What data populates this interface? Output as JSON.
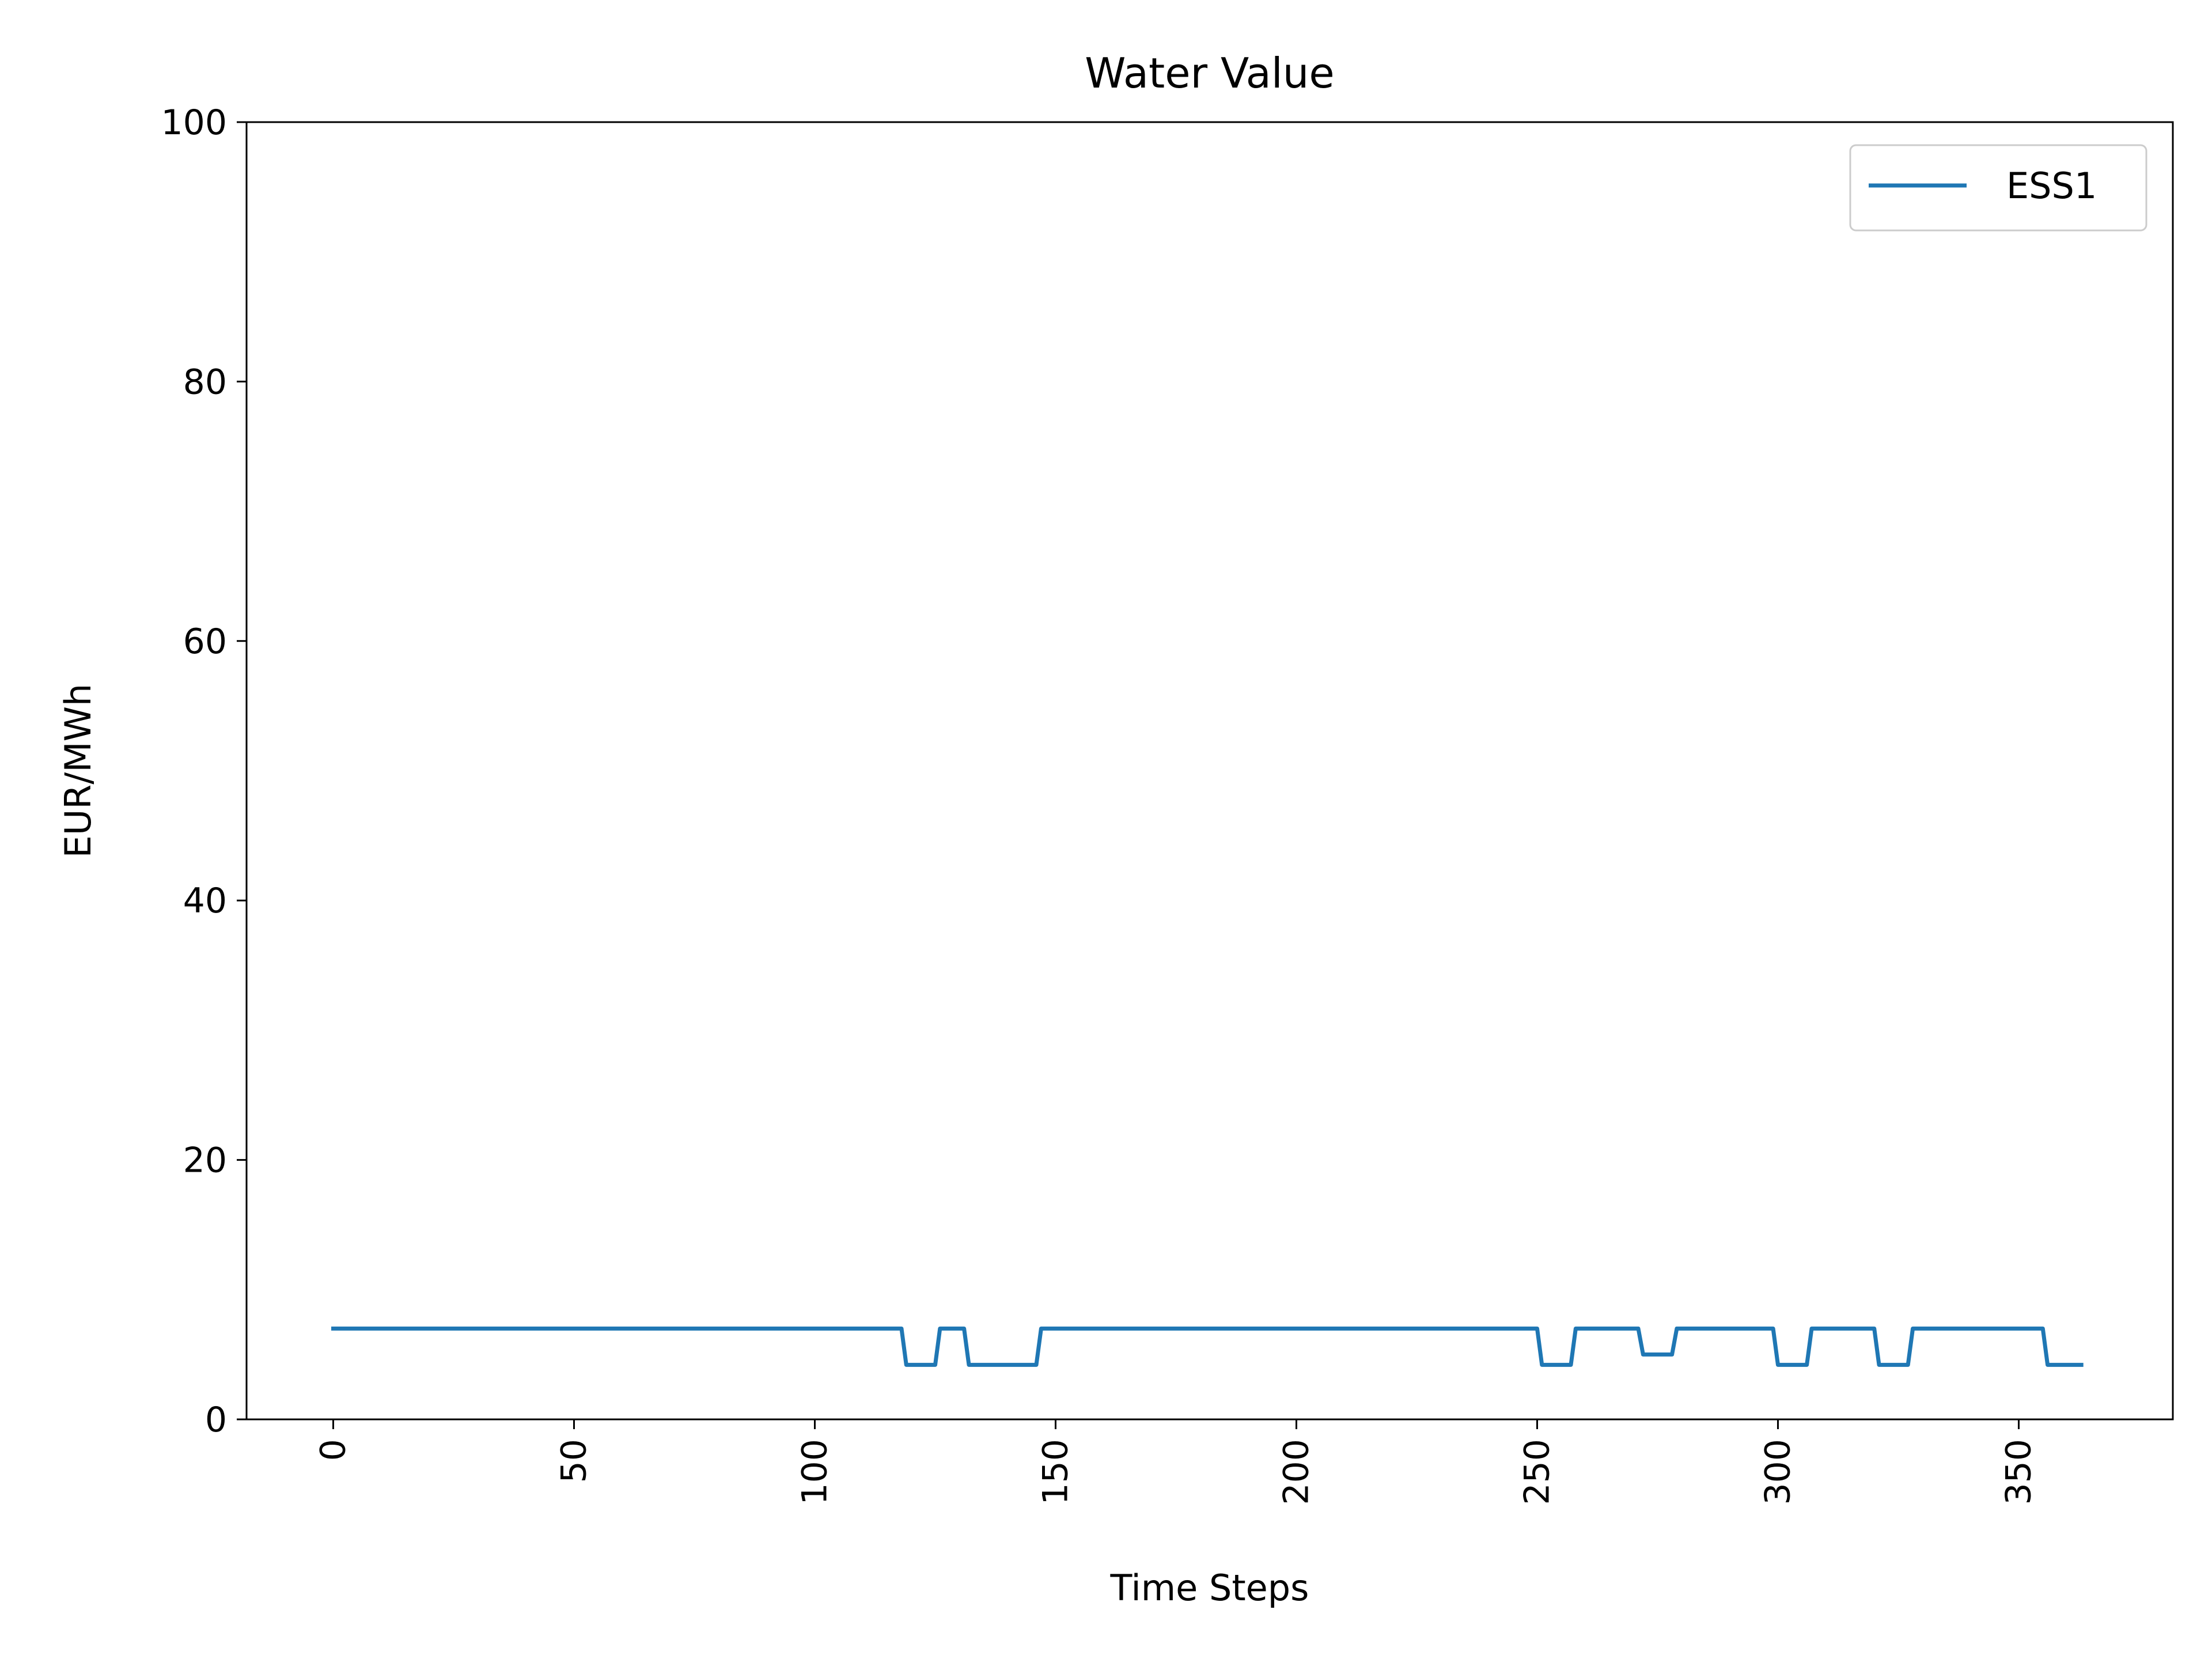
{
  "chart_data": {
    "type": "line",
    "title": "Water Value",
    "xlabel": "Time Steps",
    "ylabel": "EUR/MWh",
    "xlim": [
      -18,
      382
    ],
    "ylim": [
      0,
      100
    ],
    "xticks": [
      0,
      50,
      100,
      150,
      200,
      250,
      300,
      350
    ],
    "xtick_labels": [
      "0",
      "50",
      "100",
      "150",
      "200",
      "250",
      "300",
      "350"
    ],
    "yticks": [
      0,
      20,
      40,
      60,
      80,
      100
    ],
    "ytick_labels": [
      "0",
      "20",
      "40",
      "60",
      "80",
      "100"
    ],
    "xtick_rotation": 90,
    "grid": false,
    "legend": {
      "placement": "top-right",
      "entries": [
        "ESS1"
      ]
    },
    "series": [
      {
        "name": "ESS1",
        "color": "#1f77b4",
        "x": [
          0,
          118,
          119,
          125,
          126,
          131,
          132,
          146,
          147,
          250,
          251,
          257,
          258,
          271,
          272,
          278,
          279,
          299,
          300,
          306,
          307,
          320,
          321,
          327,
          328,
          355,
          356,
          363
        ],
        "y": [
          7,
          7,
          4.2,
          4.2,
          7,
          7,
          4.2,
          4.2,
          7,
          7,
          4.2,
          4.2,
          7,
          7,
          5,
          5,
          7,
          7,
          4.2,
          4.2,
          7,
          7,
          4.2,
          4.2,
          7,
          7,
          4.2,
          4.2
        ]
      }
    ]
  }
}
